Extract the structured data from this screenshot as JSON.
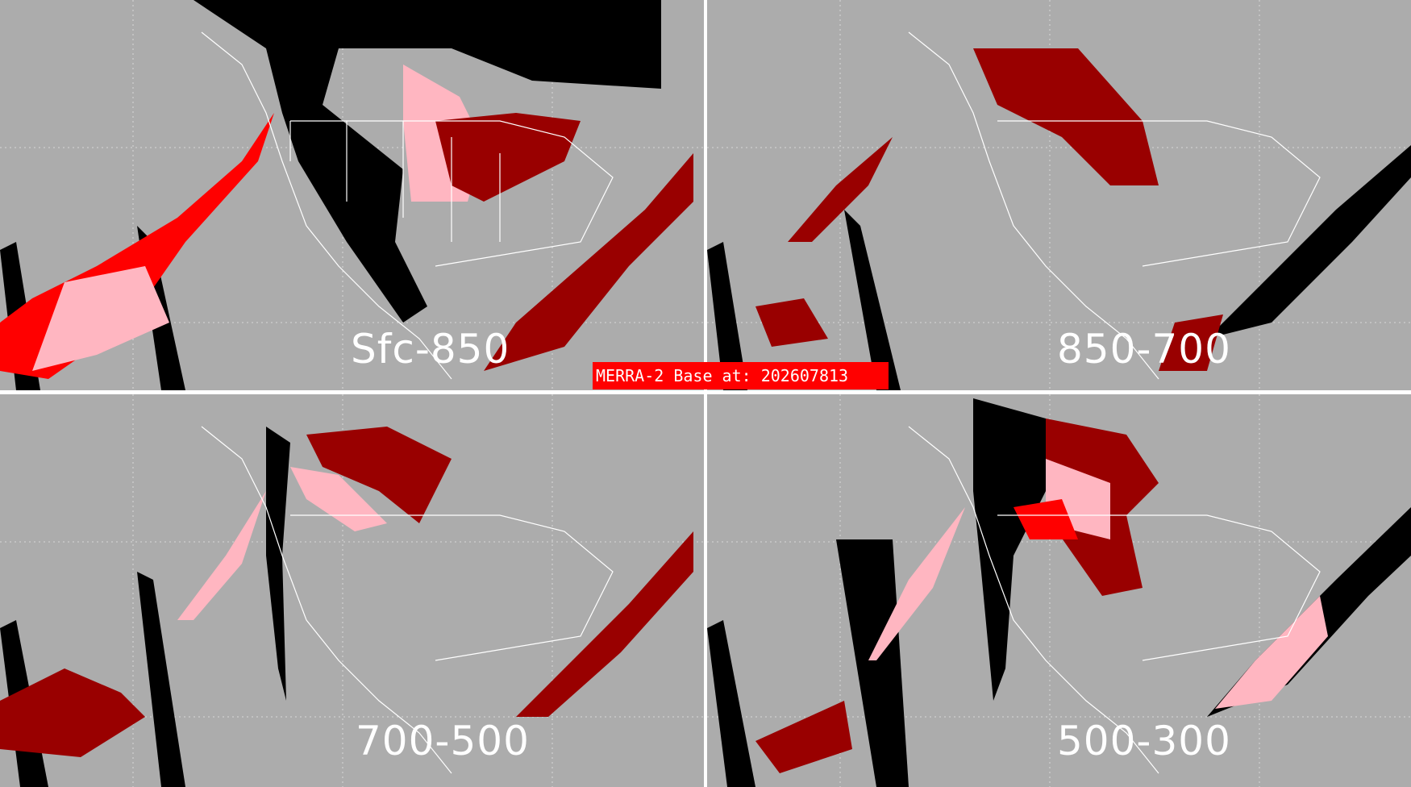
{
  "banner": {
    "text": "MERRA-2 Base at: 202607813"
  },
  "panels": [
    {
      "label": "Sfc-850"
    },
    {
      "label": "850-700"
    },
    {
      "label": "700-500"
    },
    {
      "label": "500-300"
    }
  ],
  "colors": {
    "background": "#acacac",
    "coastlines": "#ffffff",
    "no_data": "#000000",
    "level_dark": "#990000",
    "level_mid": "#ff0000",
    "level_light": "#ffb6c1",
    "banner": "#ff0000"
  }
}
